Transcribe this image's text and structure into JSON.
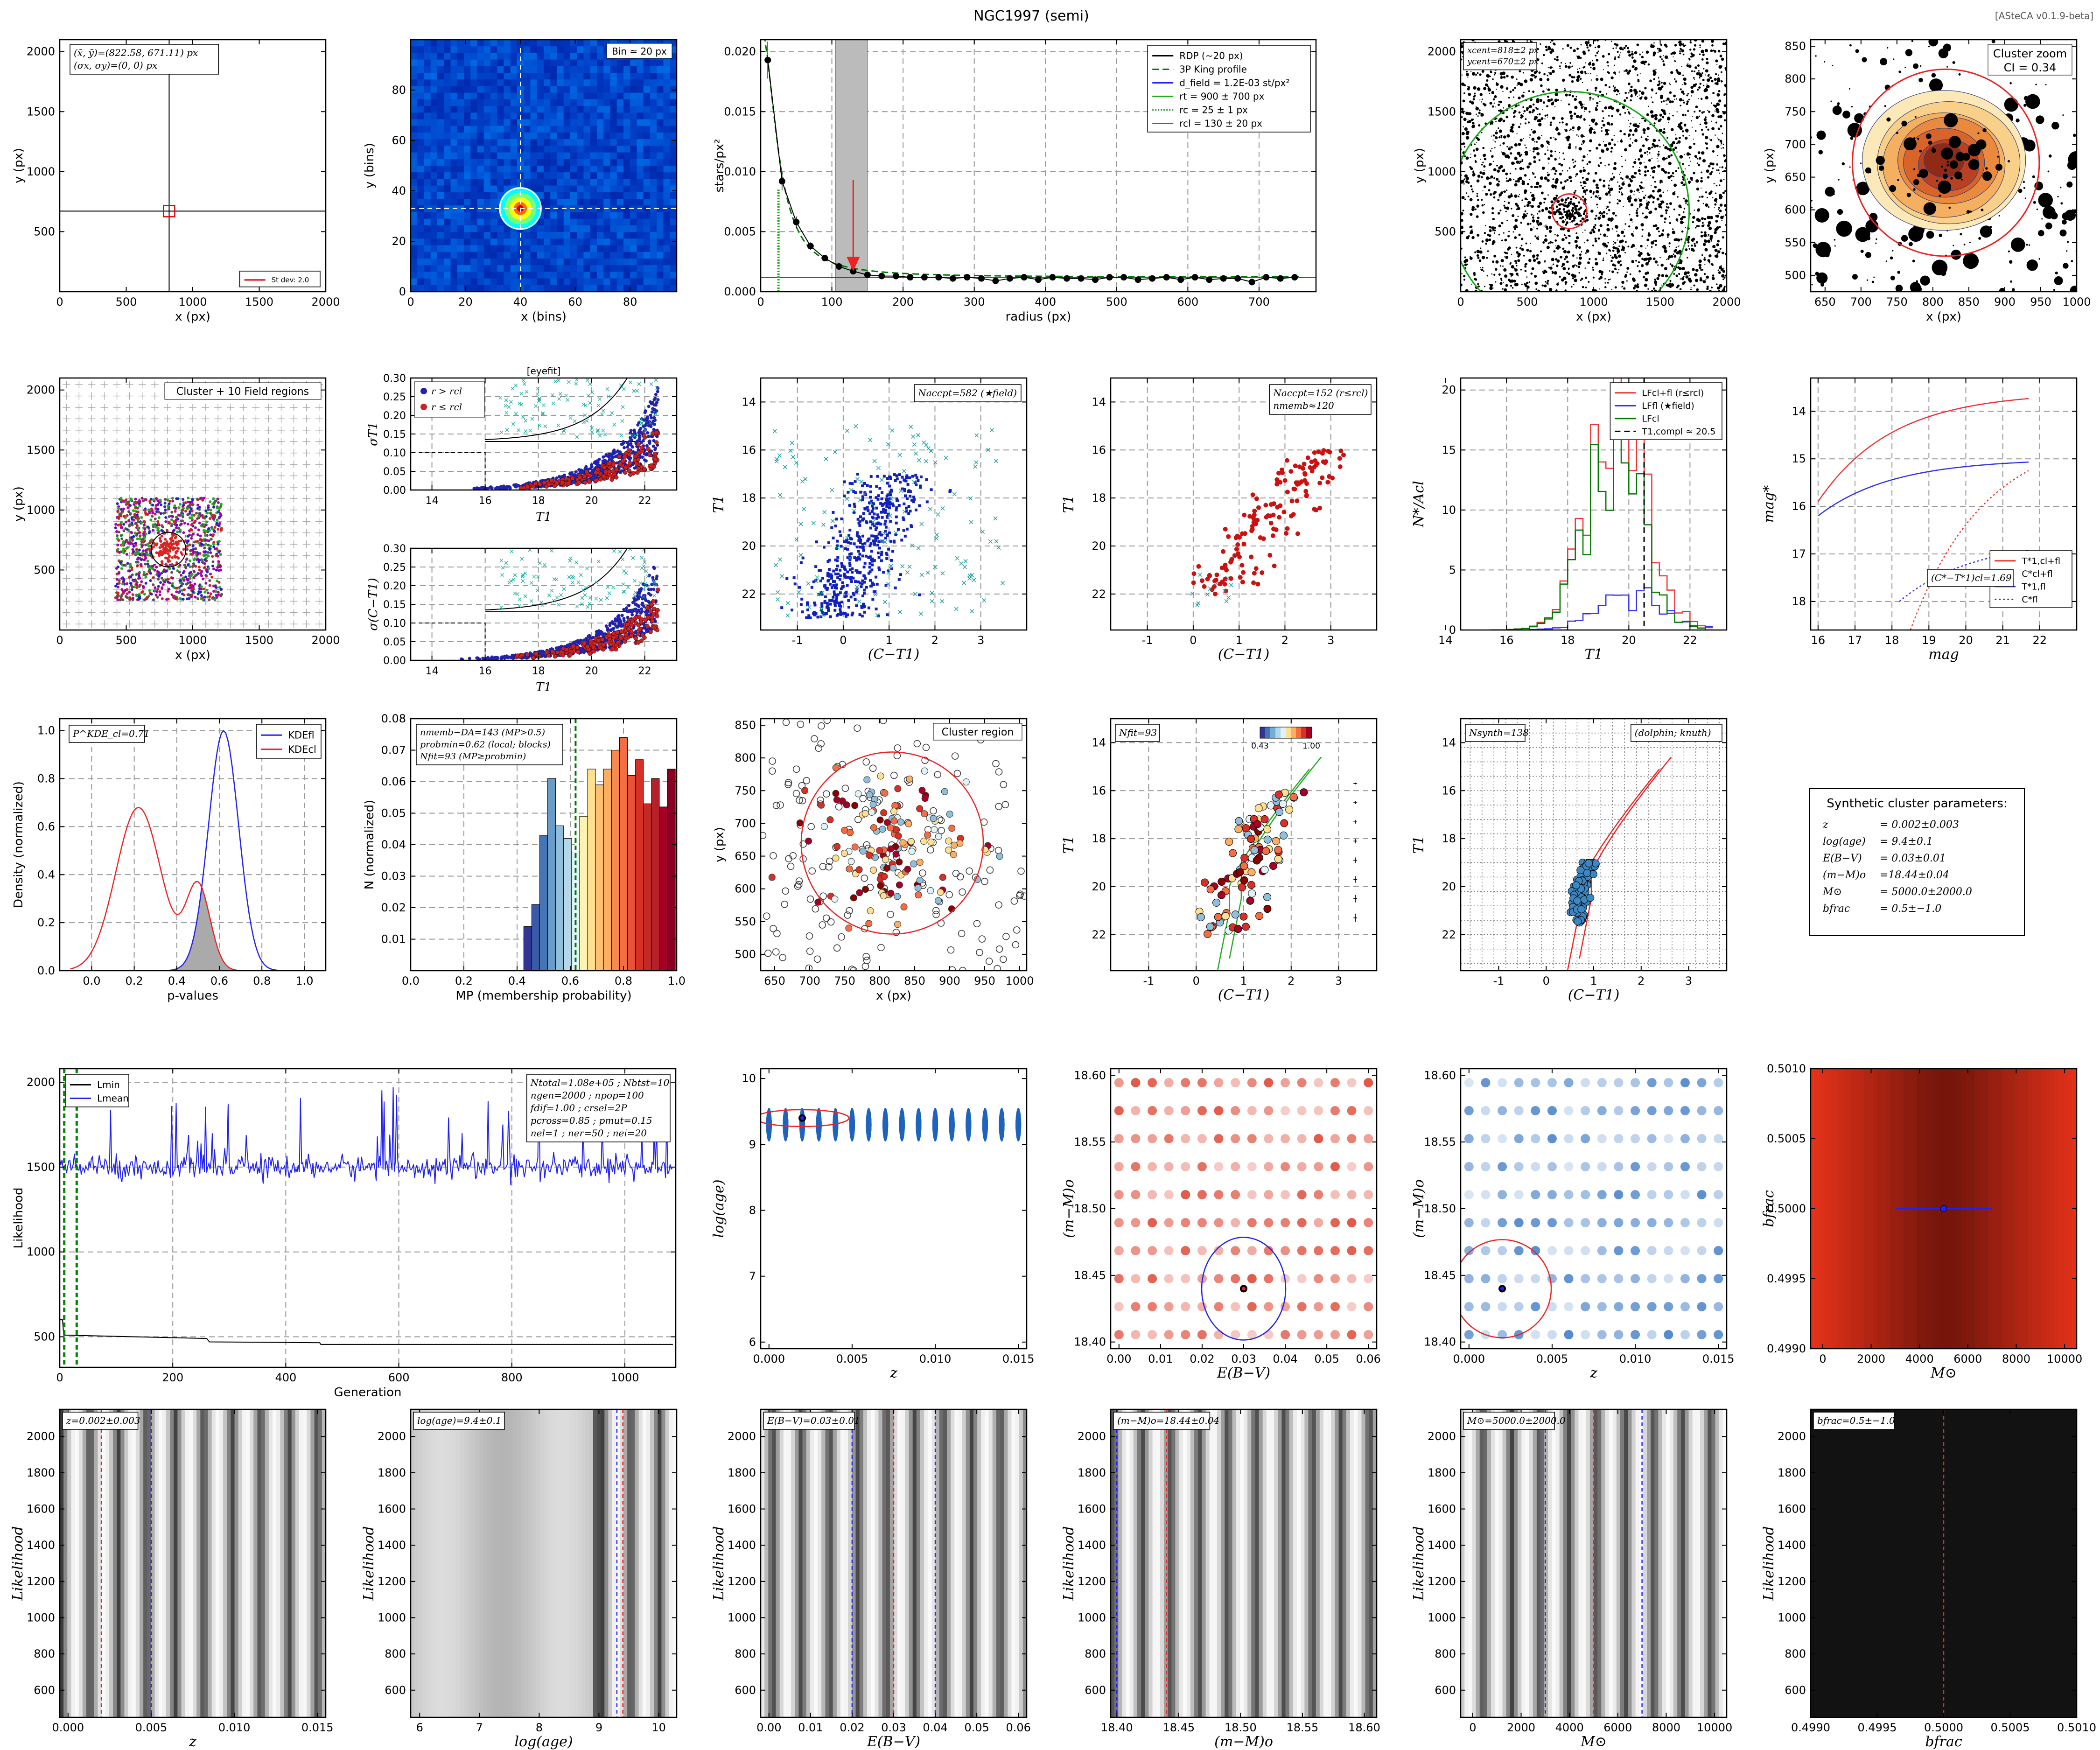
{
  "figure": {
    "version": "[ASteCA v0.1.9-beta]",
    "title": "NGC1997 (semi)"
  },
  "panels": [
    {
      "id": "center",
      "type": "scatter",
      "xlabel": "x (px)",
      "ylabel": "y (px)",
      "xlim": [
        0,
        2000
      ],
      "ylim": [
        0,
        2100
      ],
      "xticks": [
        0,
        500,
        1000,
        1500,
        2000
      ],
      "yticks": [
        500,
        1000,
        1500,
        2000
      ],
      "text": [
        "(x̄, ȳ)=(822.58, 671.11) px",
        "(σx, σy)=(0, 0) px"
      ],
      "legend": [
        "St dev: 2.0"
      ],
      "center": [
        822.58,
        671.11
      ]
    },
    {
      "id": "density-map",
      "type": "heatmap",
      "xlabel": "x (bins)",
      "ylabel": "y (bins)",
      "xlim": [
        0,
        97
      ],
      "ylim": [
        0,
        100
      ],
      "xticks": [
        0,
        20,
        40,
        60,
        80
      ],
      "yticks": [
        0,
        20,
        40,
        60,
        80
      ],
      "text": [
        "Bin ≃ 20 px"
      ],
      "center": [
        40,
        33
      ]
    },
    {
      "id": "rdp",
      "type": "line",
      "xlabel": "radius (px)",
      "ylabel": "stars/px²",
      "xlim": [
        0,
        780
      ],
      "ylim": [
        0,
        0.021
      ],
      "xticks": [
        0,
        100,
        200,
        300,
        400,
        500,
        600,
        700
      ],
      "yticks": [
        0.0,
        0.005,
        0.01,
        0.015,
        0.02
      ],
      "legend": [
        "RDP (~20 px)",
        "3P King profile",
        "d_field = 1.2E-03 st/px²",
        "rt = 900 ± 700 px",
        "rc = 25 ± 1 px",
        "rcl = 130 ± 20 px"
      ],
      "x": [
        10,
        30,
        50,
        70,
        90,
        110,
        130,
        150,
        170,
        190,
        210,
        230,
        250,
        270,
        290,
        310,
        330,
        350,
        370,
        390,
        410,
        430,
        450,
        470,
        490,
        510,
        530,
        550,
        570,
        590,
        610,
        630,
        650,
        670,
        690,
        710,
        730,
        750
      ],
      "values": [
        0.0193,
        0.0092,
        0.0058,
        0.0038,
        0.0028,
        0.0021,
        0.0017,
        0.0014,
        0.0013,
        0.0013,
        0.0012,
        0.0012,
        0.0012,
        0.0011,
        0.0012,
        0.0011,
        0.0009,
        0.0011,
        0.0012,
        0.001,
        0.0012,
        0.0011,
        0.0011,
        0.001,
        0.0012,
        0.0012,
        0.001,
        0.0011,
        0.0012,
        0.001,
        0.0012,
        0.001,
        0.0011,
        0.0011,
        0.0008,
        0.0012,
        0.0011,
        0.0012
      ],
      "field_density": 0.0012,
      "rc": 25,
      "rcl": 130,
      "shade": [
        105,
        150
      ]
    },
    {
      "id": "field",
      "type": "scatter",
      "xlabel": "x (px)",
      "ylabel": "y (px)",
      "xlim": [
        0,
        2000
      ],
      "ylim": [
        0,
        2100
      ],
      "xticks": [
        0,
        500,
        1000,
        1500,
        2000
      ],
      "yticks": [
        500,
        1000,
        1500,
        2000
      ],
      "text": [
        "xcent=818±2 px",
        "ycent=670±2 px"
      ]
    },
    {
      "id": "zoom",
      "type": "scatter",
      "xlabel": "x (px)",
      "ylabel": "y (px)",
      "xlim": [
        630,
        1000
      ],
      "ylim": [
        475,
        860
      ],
      "xticks": [
        650,
        700,
        750,
        800,
        850,
        900,
        950,
        1000
      ],
      "yticks": [
        500,
        550,
        600,
        650,
        700,
        750,
        800,
        850
      ],
      "text": [
        "Cluster zoom",
        "CI = 0.34"
      ]
    },
    {
      "id": "regions",
      "type": "scatter",
      "xlabel": "x (px)",
      "ylabel": "y (px)",
      "xlim": [
        0,
        2000
      ],
      "ylim": [
        0,
        2100
      ],
      "xticks": [
        0,
        500,
        1000,
        1500,
        2000
      ],
      "yticks": [
        500,
        1000,
        1500,
        2000
      ],
      "text": [
        "Cluster + 10 Field regions"
      ]
    },
    {
      "id": "err-t1",
      "type": "scatter",
      "xlabel": "T1",
      "ylabel": "σT1",
      "xlim": [
        13.2,
        23.2
      ],
      "ylim": [
        0,
        0.3
      ],
      "xticks": [
        14,
        16,
        18,
        20,
        22
      ],
      "yticks": [
        0.0,
        0.05,
        0.1,
        0.15,
        0.2,
        0.25,
        0.3
      ],
      "title": "[eyefit]",
      "legend": [
        "r > rcl",
        "r ≤ rcl"
      ]
    },
    {
      "id": "err-ct1",
      "type": "scatter",
      "xlabel": "T1",
      "ylabel": "σ(C−T1)",
      "xlim": [
        13.2,
        23.2
      ],
      "ylim": [
        0,
        0.3
      ],
      "xticks": [
        14,
        16,
        18,
        20,
        22
      ],
      "yticks": [
        0.0,
        0.05,
        0.1,
        0.15,
        0.2,
        0.25,
        0.3
      ]
    },
    {
      "id": "cmd-field",
      "type": "scatter",
      "xlabel": "(C−T1)",
      "ylabel": "T1",
      "xlim": [
        -1.8,
        4
      ],
      "ylim": [
        23.5,
        13
      ],
      "xticks": [
        -1,
        0,
        1,
        2,
        3
      ],
      "yticks": [
        14,
        16,
        18,
        20,
        22
      ],
      "text": [
        "Naccpt=582 (★field)"
      ]
    },
    {
      "id": "cmd-cluster",
      "type": "scatter",
      "xlabel": "(C−T1)",
      "ylabel": "T1",
      "xlim": [
        -1.8,
        4
      ],
      "ylim": [
        23.5,
        13
      ],
      "xticks": [
        -1,
        0,
        1,
        2,
        3
      ],
      "yticks": [
        14,
        16,
        18,
        20,
        22
      ],
      "text": [
        "Naccpt=152 (r≤rcl)",
        "nmemb≈120"
      ]
    },
    {
      "id": "lf",
      "type": "bar",
      "xlabel": "T1",
      "ylabel": "N*/Acl",
      "xlim": [
        14.5,
        23.2
      ],
      "ylim": [
        0,
        21
      ],
      "xticks": [
        14,
        16,
        18,
        20,
        22
      ],
      "yticks": [
        0,
        5,
        10,
        15,
        20
      ],
      "legend": [
        "LFcl+fl (r≤rcl)",
        "LFfl (★field)",
        "LFcl",
        "T1,compl ≈ 20.5"
      ],
      "completeness": 20.5
    },
    {
      "id": "integ",
      "type": "line",
      "xlabel": "mag",
      "ylabel": "mag*",
      "xlim": [
        15.8,
        23
      ],
      "ylim": [
        18.6,
        13.3
      ],
      "xticks": [
        16,
        17,
        18,
        19,
        20,
        21,
        22
      ],
      "yticks": [
        14,
        15,
        16,
        17,
        18
      ],
      "legend": [
        "T*1,cl+fl",
        "C*cl+fl",
        "T*1,fl",
        "C*fl"
      ],
      "text": [
        "(C*−T*1)cl=1.69"
      ]
    },
    {
      "id": "pvalues",
      "type": "area",
      "xlabel": "p-values",
      "ylabel": "Density (normalized)",
      "xlim": [
        -0.15,
        1.1
      ],
      "ylim": [
        0,
        1.05
      ],
      "xticks": [
        0.0,
        0.2,
        0.4,
        0.6,
        0.8,
        1.0
      ],
      "yticks": [
        0.0,
        0.2,
        0.4,
        0.6,
        0.8,
        1.0
      ],
      "text": [
        "P^KDE_cl=0.71"
      ],
      "legend": [
        "KDEfl",
        "KDEcl"
      ]
    },
    {
      "id": "mp-hist",
      "type": "bar",
      "xlabel": "MP (membership probability)",
      "ylabel": "N (normalized)",
      "xlim": [
        0,
        1
      ],
      "ylim": [
        0,
        0.08
      ],
      "xticks": [
        0.0,
        0.2,
        0.4,
        0.6,
        0.8,
        1.0
      ],
      "yticks": [
        0.01,
        0.02,
        0.03,
        0.04,
        0.05,
        0.06,
        0.07,
        0.08
      ],
      "text": [
        "nmemb−DA=143 (MP>0.5)",
        "probmin=0.62 (local; blocks)",
        "Nfit=93 (MP≥probmin)"
      ],
      "x": [
        0.44,
        0.47,
        0.5,
        0.53,
        0.56,
        0.59,
        0.62,
        0.65,
        0.68,
        0.71,
        0.74,
        0.77,
        0.8,
        0.83,
        0.86,
        0.89,
        0.92,
        0.95,
        0.98
      ],
      "values": [
        0.014,
        0.021,
        0.043,
        0.061,
        0.046,
        0.042,
        0.038,
        0.049,
        0.064,
        0.059,
        0.064,
        0.07,
        0.074,
        0.062,
        0.067,
        0.053,
        0.061,
        0.052,
        0.064
      ],
      "probmin": 0.62
    },
    {
      "id": "cluster-region",
      "type": "scatter",
      "xlabel": "x (px)",
      "ylabel": "y (px)",
      "xlim": [
        630,
        1010
      ],
      "ylim": [
        475,
        860
      ],
      "xticks": [
        650,
        700,
        750,
        800,
        850,
        900,
        950,
        1000
      ],
      "yticks": [
        500,
        550,
        600,
        650,
        700,
        750,
        800,
        850
      ],
      "text": [
        "Cluster region"
      ]
    },
    {
      "id": "cmd-fit",
      "type": "scatter",
      "xlabel": "(C−T1)",
      "ylabel": "T1",
      "xlim": [
        -1.8,
        3.8
      ],
      "ylim": [
        23.5,
        13
      ],
      "xticks": [
        -1,
        0,
        1,
        2,
        3
      ],
      "yticks": [
        14,
        16,
        18,
        20,
        22
      ],
      "text": [
        "Nfit=93"
      ],
      "colorbar": [
        "0.43",
        "1.00"
      ]
    },
    {
      "id": "cmd-synth",
      "type": "scatter",
      "xlabel": "(C−T1)",
      "ylabel": "T1",
      "xlim": [
        -1.8,
        3.8
      ],
      "ylim": [
        23.5,
        13
      ],
      "xticks": [
        -1,
        0,
        1,
        2,
        3
      ],
      "yticks": [
        14,
        16,
        18,
        20,
        22
      ],
      "text": [
        "Nsynth=138",
        "(dolphin; knuth)"
      ]
    },
    {
      "id": "params-box",
      "type": "table",
      "title": "Synthetic cluster parameters:",
      "rows": [
        [
          "z",
          "= 0.002±0.003"
        ],
        [
          "log(age)",
          "= 9.4±0.1"
        ],
        [
          "E(B−V)",
          "= 0.03±0.01"
        ],
        [
          "(m−M)o",
          "=18.44±0.04"
        ],
        [
          "M⊙",
          "= 5000.0±2000.0"
        ],
        [
          "bfrac",
          "= 0.5±−1.0"
        ]
      ]
    },
    {
      "id": "likelihood",
      "type": "line",
      "xlabel": "Generation",
      "ylabel": "Likelihood",
      "xlim": [
        0,
        1090
      ],
      "ylim": [
        320,
        2080
      ],
      "xticks": [
        0,
        200,
        400,
        600,
        800,
        1000
      ],
      "yticks": [
        500,
        1000,
        1500,
        2000
      ],
      "legend": [
        "Lmin",
        "Lmean"
      ],
      "text": [
        "Ntotal=1.08e+05 ; Nbtst=10",
        "ngen=2000 ; npop=100",
        "fdif=1.00 ; crsel=2P",
        "pcross=0.85 ; pmut=0.15",
        "nel=1 ; ner=50 ; nei=20"
      ]
    },
    {
      "id": "dens-z-age",
      "type": "heatmap",
      "xlabel": "z",
      "ylabel": "log(age)",
      "xlim": [
        -0.0005,
        0.0155
      ],
      "ylim": [
        5.9,
        10.15
      ],
      "xticks": [
        0.0,
        0.005,
        0.01,
        0.015
      ],
      "yticks": [
        6,
        7,
        8,
        9,
        10
      ],
      "best": [
        0.002,
        9.4
      ]
    },
    {
      "id": "dens-ebv-dm",
      "type": "heatmap",
      "xlabel": "E(B−V)",
      "ylabel": "(m−M)o",
      "xlim": [
        -0.002,
        0.062
      ],
      "ylim": [
        18.395,
        18.605
      ],
      "xticks": [
        0.0,
        0.01,
        0.02,
        0.03,
        0.04,
        0.05,
        0.06
      ],
      "yticks": [
        18.4,
        18.45,
        18.5,
        18.55,
        18.6
      ],
      "best": [
        0.03,
        18.44
      ]
    },
    {
      "id": "dens-z-dm",
      "type": "heatmap",
      "xlabel": "z",
      "ylabel": "(m−M)o",
      "xlim": [
        -0.0005,
        0.0155
      ],
      "ylim": [
        18.395,
        18.605
      ],
      "xticks": [
        0.0,
        0.005,
        0.01,
        0.015
      ],
      "yticks": [
        18.4,
        18.45,
        18.5,
        18.55,
        18.6
      ],
      "best": [
        0.002,
        18.44
      ]
    },
    {
      "id": "dens-mass-bin",
      "type": "heatmap",
      "xlabel": "M⊙",
      "ylabel": "bfrac",
      "xlim": [
        -500,
        10500
      ],
      "ylim": [
        0.499,
        0.501
      ],
      "xticks": [
        0,
        2000,
        4000,
        6000,
        8000,
        10000
      ],
      "yticks": [
        0.499,
        0.4995,
        0.5,
        0.5005,
        0.501
      ],
      "best": [
        5000,
        0.5
      ]
    },
    {
      "id": "lkl-z",
      "type": "heatmap",
      "xlabel": "z",
      "ylabel": "Likelihood",
      "xlim": [
        -0.0005,
        0.0155
      ],
      "ylim": [
        450,
        2150
      ],
      "xticks": [
        0.0,
        0.005,
        0.01,
        0.015
      ],
      "yticks": [
        600,
        800,
        1000,
        1200,
        1400,
        1600,
        1800,
        2000
      ],
      "text": [
        "z=0.002±0.003"
      ]
    },
    {
      "id": "lkl-age",
      "type": "heatmap",
      "xlabel": "log(age)",
      "ylabel": "Likelihood",
      "xlim": [
        5.85,
        10.3
      ],
      "ylim": [
        450,
        2150
      ],
      "xticks": [
        6,
        7,
        8,
        9,
        10
      ],
      "yticks": [
        600,
        800,
        1000,
        1200,
        1400,
        1600,
        1800,
        2000
      ],
      "text": [
        "log(age)=9.4±0.1"
      ]
    },
    {
      "id": "lkl-ebv",
      "type": "heatmap",
      "xlabel": "E(B−V)",
      "ylabel": "Likelihood",
      "xlim": [
        -0.002,
        0.062
      ],
      "ylim": [
        450,
        2150
      ],
      "xticks": [
        0.0,
        0.01,
        0.02,
        0.03,
        0.04,
        0.05,
        0.06
      ],
      "yticks": [
        600,
        800,
        1000,
        1200,
        1400,
        1600,
        1800,
        2000
      ],
      "text": [
        "E(B−V)=0.03±0.01"
      ]
    },
    {
      "id": "lkl-dm",
      "type": "heatmap",
      "xlabel": "(m−M)o",
      "ylabel": "Likelihood",
      "xlim": [
        18.395,
        18.61
      ],
      "ylim": [
        450,
        2150
      ],
      "xticks": [
        18.4,
        18.45,
        18.5,
        18.55,
        18.6
      ],
      "yticks": [
        600,
        800,
        1000,
        1200,
        1400,
        1600,
        1800,
        2000
      ],
      "text": [
        "(m−M)o=18.44±0.04"
      ]
    },
    {
      "id": "lkl-mass",
      "type": "heatmap",
      "xlabel": "M⊙",
      "ylabel": "Likelihood",
      "xlim": [
        -500,
        10500
      ],
      "ylim": [
        450,
        2150
      ],
      "xticks": [
        0,
        2000,
        4000,
        6000,
        8000,
        10000
      ],
      "yticks": [
        600,
        800,
        1000,
        1200,
        1400,
        1600,
        1800,
        2000
      ],
      "text": [
        "M⊙=5000.0±2000.0"
      ]
    },
    {
      "id": "lkl-bin",
      "type": "heatmap",
      "xlabel": "bfrac",
      "ylabel": "Likelihood",
      "xlim": [
        0.499,
        0.501
      ],
      "ylim": [
        450,
        2150
      ],
      "xticks": [
        0.499,
        0.4995,
        0.5,
        0.5005,
        0.501
      ],
      "yticks": [
        600,
        800,
        1000,
        1200,
        1400,
        1600,
        1800,
        2000
      ],
      "text": [
        "bfrac=0.5±−1.0"
      ]
    }
  ]
}
